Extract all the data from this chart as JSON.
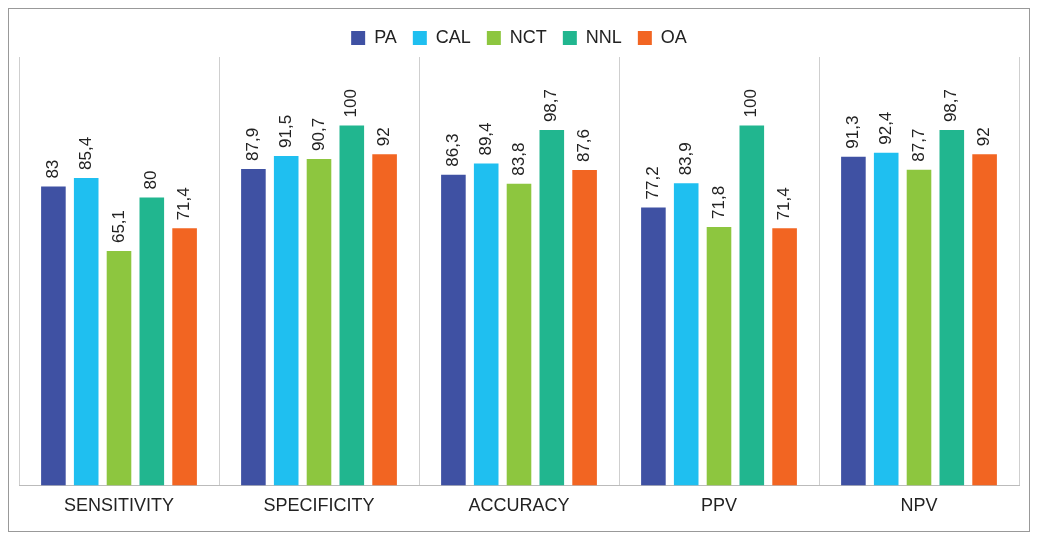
{
  "chart_data": {
    "type": "bar",
    "categories": [
      "SENSITIVITY",
      "SPECIFICITY",
      "ACCURACY",
      "PPV",
      "NPV"
    ],
    "series": [
      {
        "name": "PA",
        "color": "#3f51a3",
        "values": [
          83,
          87.9,
          86.3,
          77.2,
          91.3
        ],
        "value_labels": [
          "83",
          "87,9",
          "86,3",
          "77,2",
          "91,3"
        ]
      },
      {
        "name": "CAL",
        "color": "#1fbff0",
        "values": [
          85.4,
          91.5,
          89.4,
          83.9,
          92.4
        ],
        "value_labels": [
          "85,4",
          "91,5",
          "89,4",
          "83,9",
          "92,4"
        ]
      },
      {
        "name": "NCT",
        "color": "#8dc63f",
        "values": [
          65.1,
          90.7,
          83.8,
          71.8,
          87.7
        ],
        "value_labels": [
          "65,1",
          "90,7",
          "83,8",
          "71,8",
          "87,7"
        ]
      },
      {
        "name": "NNL",
        "color": "#21b68f",
        "values": [
          80,
          100,
          98.7,
          100,
          98.7
        ],
        "value_labels": [
          "80",
          "100",
          "98,7",
          "100",
          "98,7"
        ]
      },
      {
        "name": "OA",
        "color": "#f26522",
        "values": [
          71.4,
          92,
          87.6,
          71.4,
          92
        ],
        "value_labels": [
          "71,4",
          "92",
          "87,6",
          "71,4",
          "92"
        ]
      }
    ],
    "grid": "x",
    "legend": "top"
  }
}
